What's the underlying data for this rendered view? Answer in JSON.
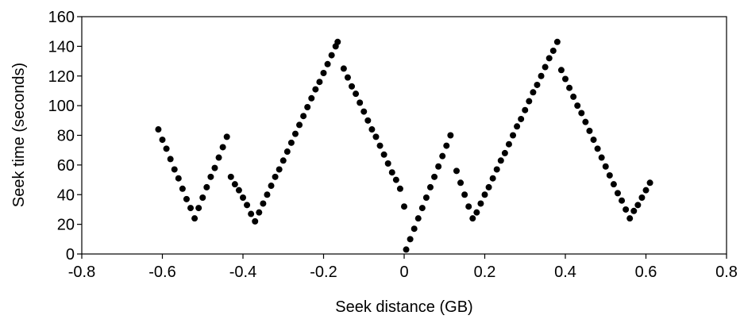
{
  "chart_data": {
    "type": "scatter",
    "xlabel": "Seek distance (GB)",
    "ylabel": "Seek time (seconds)",
    "color": "#000000",
    "x": [
      -0.61,
      -0.6,
      -0.59,
      -0.58,
      -0.57,
      -0.56,
      -0.55,
      -0.54,
      -0.53,
      -0.52,
      -0.51,
      -0.5,
      -0.49,
      -0.48,
      -0.47,
      -0.46,
      -0.45,
      -0.44,
      -0.43,
      -0.42,
      -0.41,
      -0.4,
      -0.39,
      -0.38,
      -0.37,
      -0.36,
      -0.35,
      -0.34,
      -0.33,
      -0.32,
      -0.31,
      -0.3,
      -0.29,
      -0.28,
      -0.27,
      -0.26,
      -0.25,
      -0.24,
      -0.23,
      -0.22,
      -0.21,
      -0.2,
      -0.19,
      -0.18,
      -0.17,
      -0.165,
      -0.15,
      -0.14,
      -0.13,
      -0.12,
      -0.11,
      -0.1,
      -0.09,
      -0.08,
      -0.07,
      -0.06,
      -0.05,
      -0.04,
      -0.03,
      -0.02,
      -0.01,
      0.0,
      0.005,
      0.015,
      0.025,
      0.035,
      0.045,
      0.055,
      0.065,
      0.075,
      0.085,
      0.095,
      0.105,
      0.115,
      0.13,
      0.14,
      0.15,
      0.16,
      0.17,
      0.18,
      0.19,
      0.2,
      0.21,
      0.22,
      0.23,
      0.24,
      0.25,
      0.26,
      0.27,
      0.28,
      0.29,
      0.3,
      0.31,
      0.32,
      0.33,
      0.34,
      0.35,
      0.36,
      0.37,
      0.38,
      0.39,
      0.4,
      0.41,
      0.42,
      0.43,
      0.44,
      0.45,
      0.46,
      0.47,
      0.48,
      0.49,
      0.5,
      0.51,
      0.52,
      0.53,
      0.54,
      0.55,
      0.56,
      0.57,
      0.58,
      0.59,
      0.6,
      0.61
    ],
    "values": [
      84,
      77,
      71,
      64,
      57,
      51,
      44,
      37,
      31,
      24,
      31,
      38,
      45,
      52,
      58,
      65,
      72,
      79,
      52,
      47,
      43,
      38,
      33,
      27,
      22,
      28,
      34,
      40,
      46,
      52,
      57,
      63,
      69,
      75,
      81,
      87,
      93,
      99,
      105,
      111,
      116,
      122,
      128,
      134,
      140,
      143,
      125,
      119,
      113,
      108,
      102,
      96,
      90,
      84,
      79,
      73,
      67,
      61,
      55,
      50,
      44,
      32,
      3,
      10,
      17,
      24,
      31,
      38,
      45,
      52,
      59,
      66,
      73,
      80,
      56,
      48,
      40,
      32,
      24,
      28,
      34,
      40,
      45,
      51,
      57,
      63,
      68,
      74,
      80,
      86,
      91,
      97,
      103,
      109,
      114,
      120,
      126,
      132,
      137,
      143,
      124,
      118,
      112,
      106,
      100,
      95,
      89,
      83,
      77,
      71,
      65,
      59,
      53,
      47,
      41,
      36,
      30,
      24,
      29,
      33,
      38,
      43,
      48
    ],
    "xlim": [
      -0.8,
      0.8
    ],
    "xticks": [
      -0.8,
      -0.6,
      -0.4,
      -0.2,
      0,
      0.2,
      0.4,
      0.6,
      0.8
    ],
    "ylim": [
      0,
      160
    ],
    "yticks": [
      0,
      20,
      40,
      60,
      80,
      100,
      120,
      140,
      160
    ]
  }
}
